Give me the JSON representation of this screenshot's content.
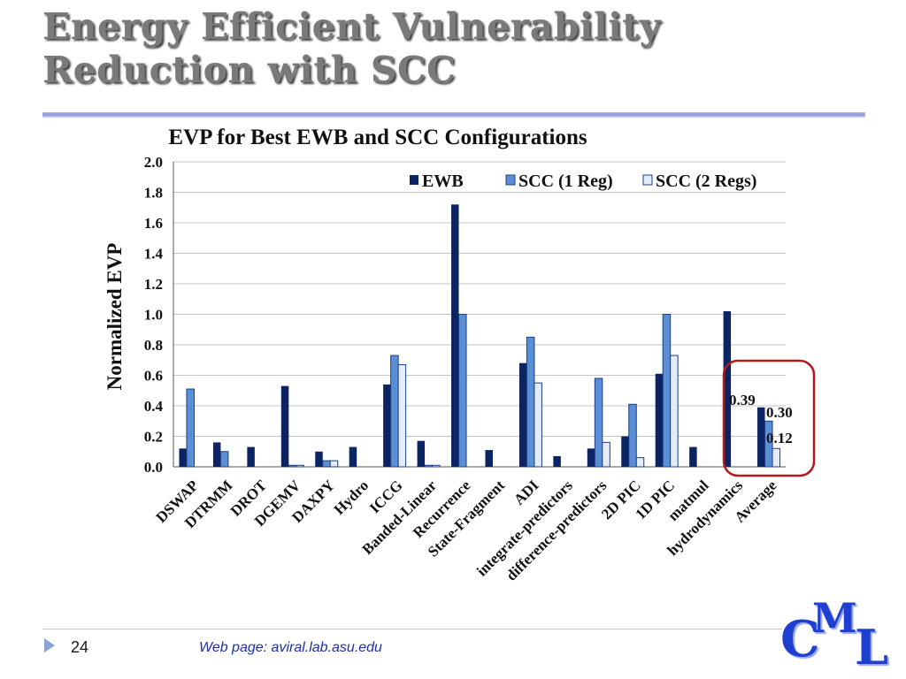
{
  "slide": {
    "title_line1": "Energy Efficient Vulnerability",
    "title_line2": "Reduction with SCC",
    "page_number": "24",
    "web_page": "Web page:  aviral.lab.asu.edu",
    "logo": {
      "c": "C",
      "m": "M",
      "l": "L"
    }
  },
  "colors": {
    "ewb": "#0c2463",
    "scc1": "#5a8fd6",
    "scc2": "#e3ecf8",
    "highlight": "#b31b1b",
    "grid": "#c4c4c4",
    "title": "#7a7a7a",
    "logo": "#1e3fd0",
    "link": "#1c2fa8"
  },
  "chart_data": {
    "type": "bar",
    "title": "EVP for Best EWB and SCC Configurations",
    "xlabel": "",
    "ylabel": "Normalized EVP",
    "ylim": [
      0,
      2.0
    ],
    "yticks": [
      "0.0",
      "0.2",
      "0.4",
      "0.6",
      "0.8",
      "1.0",
      "1.2",
      "1.4",
      "1.6",
      "1.8",
      "2.0"
    ],
    "grid": true,
    "legend_position": "top-right",
    "categories": [
      "DSWAP",
      "DTRMM",
      "DROT",
      "DGEMV",
      "DAXPY",
      "Hydro",
      "ICCG",
      "Banded-Linear",
      "Recurrence",
      "State-Fragment",
      "ADI",
      "integrate-predictors",
      "difference-predictors",
      "2D PIC",
      "1D PIC",
      "matmul",
      "hydrodynamics",
      "Average"
    ],
    "series": [
      {
        "name": "EWB",
        "values": [
          0.12,
          0.16,
          0.13,
          0.53,
          0.1,
          0.13,
          0.54,
          0.17,
          1.72,
          0.11,
          0.68,
          0.07,
          0.12,
          0.2,
          0.61,
          0.13,
          1.02,
          0.39
        ]
      },
      {
        "name": "SCC (1 Reg)",
        "values": [
          0.51,
          0.1,
          0,
          0.01,
          0.04,
          0,
          0.73,
          0.01,
          1.0,
          0,
          0.85,
          0,
          0.58,
          0.41,
          1.0,
          0,
          0,
          0.3
        ]
      },
      {
        "name": "SCC (2 Regs)",
        "values": [
          0,
          0,
          0,
          0.01,
          0.04,
          0,
          0.67,
          0.01,
          0,
          0,
          0.55,
          0,
          0.16,
          0.06,
          0.73,
          0,
          0,
          0.12
        ]
      }
    ],
    "annotations": [
      "0.39",
      "0.30",
      "0.12"
    ]
  }
}
